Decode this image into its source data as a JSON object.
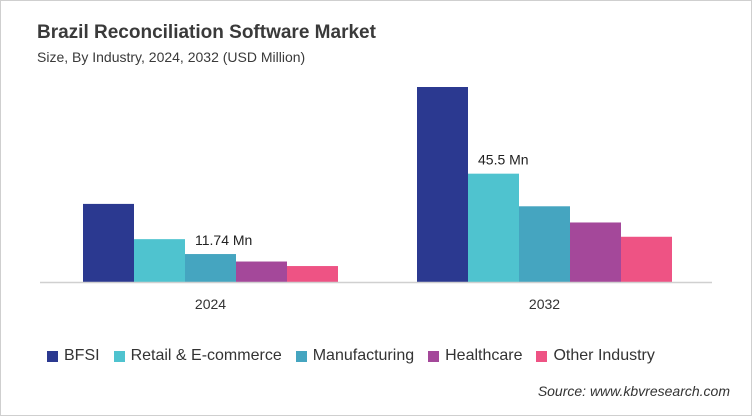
{
  "chart_data": {
    "type": "bar",
    "title": "Brazil Reconciliation Software Market",
    "subtitle": "Size, By Industry, 2024, 2032 (USD Million)",
    "categories": [
      "2024",
      "2032"
    ],
    "series": [
      {
        "name": "BFSI",
        "color": "#2b3990",
        "values": [
          32.8,
          81.9
        ]
      },
      {
        "name": "Retail & E-commerce",
        "color": "#4fc3cf",
        "values": [
          18.0,
          45.5
        ]
      },
      {
        "name": "Manufacturing",
        "color": "#45a5c0",
        "values": [
          11.74,
          31.8
        ]
      },
      {
        "name": "Healthcare",
        "color": "#a4489a",
        "values": [
          8.6,
          25.0
        ]
      },
      {
        "name": "Other Industry",
        "color": "#ee5384",
        "values": [
          6.7,
          19.0
        ]
      }
    ],
    "annotations": [
      {
        "category": "2024",
        "series": "Manufacturing",
        "text": "11.74 Mn"
      },
      {
        "category": "2032",
        "series": "Retail & E-commerce",
        "text": "45.5 Mn"
      }
    ],
    "ylim": [
      0,
      90
    ],
    "grid": false,
    "legend": "bottom",
    "xlabel": "",
    "ylabel": ""
  },
  "source": "Source: www.kbvresearch.com"
}
